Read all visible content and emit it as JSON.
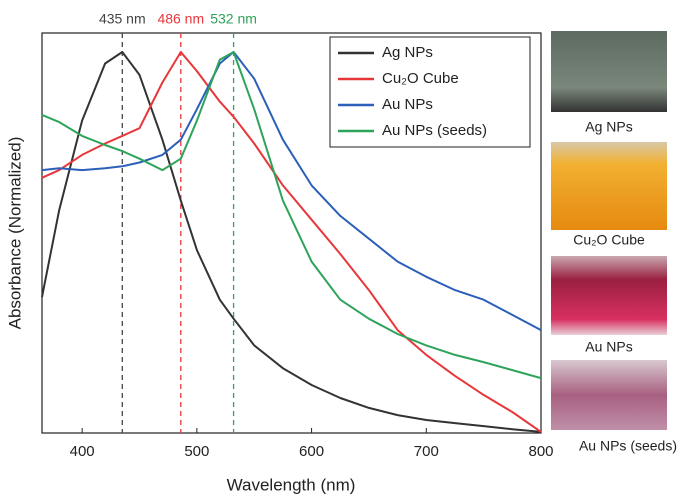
{
  "chart_data": {
    "type": "line",
    "x_label": "Wavelength (nm)",
    "y_label": "Absorbance (Normalized)",
    "xlim": [
      365,
      800
    ],
    "ylim": [
      0,
      1.05
    ],
    "xticks": [
      400,
      500,
      600,
      700,
      800
    ],
    "x": [
      365,
      380,
      400,
      420,
      435,
      450,
      470,
      486,
      500,
      520,
      532,
      550,
      575,
      600,
      625,
      650,
      675,
      700,
      725,
      750,
      775,
      800
    ],
    "series": [
      {
        "name": "Ag NPs",
        "color": "#333333",
        "values": [
          0.357,
          0.585,
          0.82,
          0.97,
          1.0,
          0.94,
          0.77,
          0.61,
          0.48,
          0.35,
          0.3,
          0.23,
          0.17,
          0.126,
          0.092,
          0.066,
          0.047,
          0.034,
          0.026,
          0.018,
          0.01,
          0.003
        ]
      },
      {
        "name": "Cu₂O Cube",
        "color": "#e8373a",
        "values": [
          0.67,
          0.69,
          0.73,
          0.76,
          0.78,
          0.8,
          0.92,
          1.0,
          0.95,
          0.87,
          0.83,
          0.76,
          0.65,
          0.56,
          0.47,
          0.375,
          0.27,
          0.205,
          0.15,
          0.1,
          0.055,
          0.003
        ]
      },
      {
        "name": "Au NPs",
        "color": "#2b5fb8",
        "values": [
          0.69,
          0.695,
          0.69,
          0.695,
          0.7,
          0.71,
          0.73,
          0.77,
          0.85,
          0.97,
          1.0,
          0.93,
          0.77,
          0.65,
          0.57,
          0.51,
          0.45,
          0.41,
          0.375,
          0.35,
          0.31,
          0.27
        ]
      },
      {
        "name": "Au NPs (seeds)",
        "color": "#2ea35a",
        "values": [
          0.835,
          0.816,
          0.78,
          0.756,
          0.74,
          0.72,
          0.69,
          0.72,
          0.82,
          0.98,
          1.0,
          0.85,
          0.61,
          0.45,
          0.35,
          0.3,
          0.26,
          0.23,
          0.205,
          0.186,
          0.165,
          0.144
        ]
      }
    ],
    "annotations": [
      {
        "x": 435,
        "label": "435 nm",
        "color": "#444444"
      },
      {
        "x": 486,
        "label": "486 nm",
        "color": "#e8373a"
      },
      {
        "x": 532,
        "label": "532 nm",
        "color": "#2ea35a"
      }
    ],
    "legend": "upper right"
  },
  "photos": [
    {
      "label": "Ag NPs"
    },
    {
      "label": "Cu₂O Cube"
    },
    {
      "label": "Au NPs"
    },
    {
      "label": "Au NPs (seeds)"
    }
  ]
}
